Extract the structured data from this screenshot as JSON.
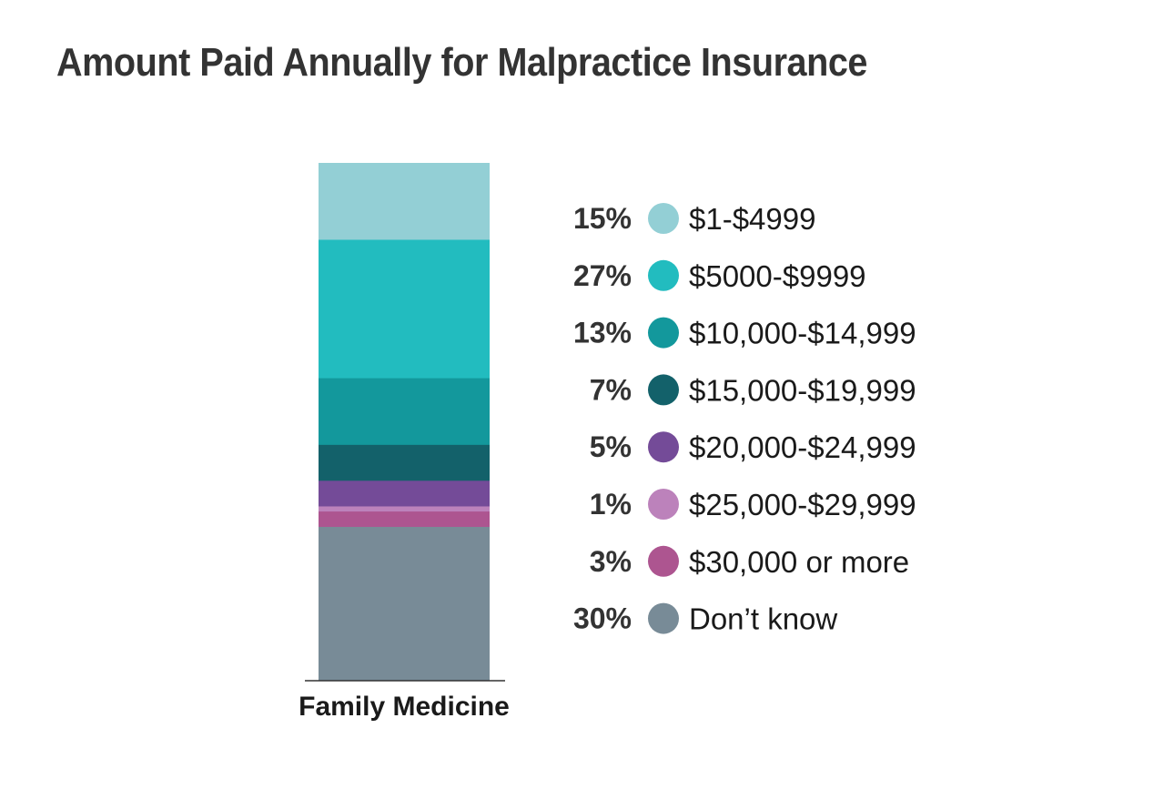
{
  "chart_data": {
    "type": "bar",
    "stacked": true,
    "title": "Amount Paid Annually for Malpractice Insurance",
    "categories": [
      "Family Medicine"
    ],
    "unit": "%",
    "series": [
      {
        "name": "$1-$4999",
        "value": 15,
        "label": "15%",
        "color": "#93cfd5"
      },
      {
        "name": "$5000-$9999",
        "value": 27,
        "label": "27%",
        "color": "#22bcbf"
      },
      {
        "name": "$10,000-$14,999",
        "value": 13,
        "label": "13%",
        "color": "#13989c"
      },
      {
        "name": "$15,000-$19,999",
        "value": 7,
        "label": "7%",
        "color": "#13616a"
      },
      {
        "name": "$20,000-$24,999",
        "value": 5,
        "label": "5%",
        "color": "#744b98"
      },
      {
        "name": "$25,000-$29,999",
        "value": 1,
        "label": "1%",
        "color": "#bc82bb"
      },
      {
        "name": "$30,000 or more",
        "value": 3,
        "label": "3%",
        "color": "#ad5590"
      },
      {
        "name": "Don’t know",
        "value": 30,
        "label": "30%",
        "color": "#788b97"
      }
    ],
    "legend_position": "right",
    "grid": false
  }
}
